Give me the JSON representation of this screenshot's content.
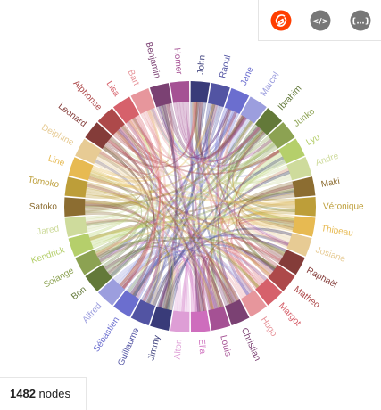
{
  "toolbar": {
    "buttons": [
      {
        "name": "logo-button",
        "icon": "svelte-logo-icon",
        "color": "#ff3e00"
      },
      {
        "name": "code-button",
        "icon": "code-brackets-icon",
        "glyph": "</>",
        "color": "#777777"
      },
      {
        "name": "data-button",
        "icon": "json-braces-icon",
        "glyph": "{…}",
        "color": "#777777"
      }
    ]
  },
  "stats": {
    "count": "1482",
    "unit": "nodes"
  },
  "chart_data": {
    "type": "chord",
    "groups": [
      {
        "name": "John",
        "color": "#393b79"
      },
      {
        "name": "Raoul",
        "color": "#5254a3"
      },
      {
        "name": "Jane",
        "color": "#6b6ecf"
      },
      {
        "name": "Marcel",
        "color": "#9c9ede"
      },
      {
        "name": "Ibrahim",
        "color": "#637939"
      },
      {
        "name": "Junko",
        "color": "#8ca252"
      },
      {
        "name": "Lyu",
        "color": "#b5cf6b"
      },
      {
        "name": "André",
        "color": "#cedb9c"
      },
      {
        "name": "Maki",
        "color": "#8c6d31"
      },
      {
        "name": "Véronique",
        "color": "#bd9e39"
      },
      {
        "name": "Thibeau",
        "color": "#e7ba52"
      },
      {
        "name": "Josiane",
        "color": "#e7cb94"
      },
      {
        "name": "Raphaël",
        "color": "#843c39"
      },
      {
        "name": "Mathéo",
        "color": "#ad494a"
      },
      {
        "name": "Margot",
        "color": "#d6616b"
      },
      {
        "name": "Hugo",
        "color": "#e7969c"
      },
      {
        "name": "Christian",
        "color": "#7b4173"
      },
      {
        "name": "Louis",
        "color": "#a55194"
      },
      {
        "name": "Ella",
        "color": "#ce6dbd"
      },
      {
        "name": "Alton",
        "color": "#de9ed6"
      },
      {
        "name": "Jimmy",
        "color": "#393b79"
      },
      {
        "name": "Guillaume",
        "color": "#5254a3"
      },
      {
        "name": "Sébastien",
        "color": "#6b6ecf"
      },
      {
        "name": "Alfred",
        "color": "#9c9ede"
      },
      {
        "name": "Bon",
        "color": "#637939"
      },
      {
        "name": "Solange",
        "color": "#8ca252"
      },
      {
        "name": "Kendrick",
        "color": "#b5cf6b"
      },
      {
        "name": "Jared",
        "color": "#cedb9c"
      },
      {
        "name": "Satoko",
        "color": "#8c6d31"
      },
      {
        "name": "Tomoko",
        "color": "#bd9e39"
      },
      {
        "name": "Line",
        "color": "#e7ba52"
      },
      {
        "name": "Delphine",
        "color": "#e7cb94"
      },
      {
        "name": "Leonard",
        "color": "#843c39"
      },
      {
        "name": "Alphonse",
        "color": "#ad494a"
      },
      {
        "name": "Lisa",
        "color": "#d6616b"
      },
      {
        "name": "Bart",
        "color": "#e7969c"
      },
      {
        "name": "Benjamin",
        "color": "#7b4173"
      },
      {
        "name": "Homer",
        "color": "#a55194"
      }
    ]
  }
}
